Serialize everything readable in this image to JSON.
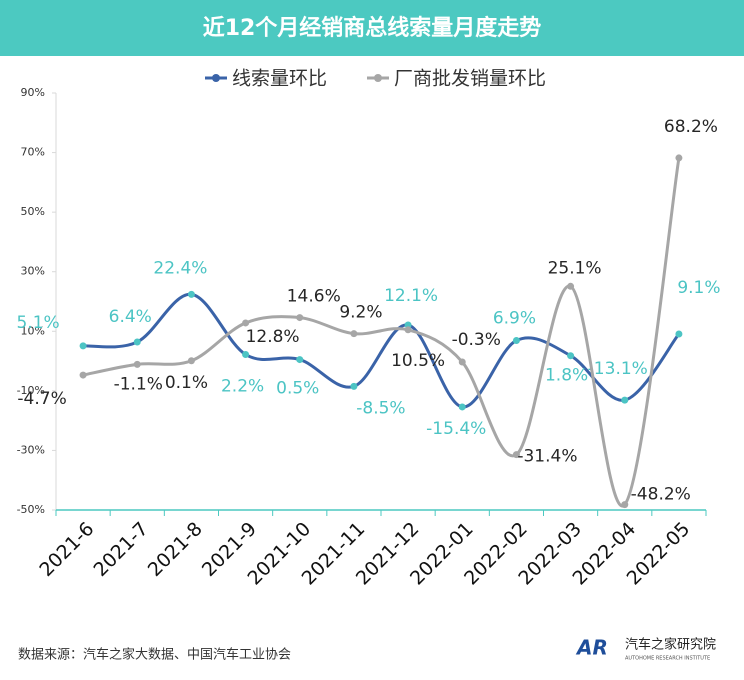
{
  "chart_data": {
    "type": "line",
    "title": "近12个月经销商总线索量月度走势",
    "categories": [
      "2021-6",
      "2021-7",
      "2021-8",
      "2021-9",
      "2021-10",
      "2021-11",
      "2021-12",
      "2022-01",
      "2022-02",
      "2022-03",
      "2022-04",
      "2022-05"
    ],
    "series": [
      {
        "name": "线索量环比",
        "color": "#3a63a8",
        "marker_color": "#4cc4c4",
        "label_color": "#4cc4c4",
        "values": [
          5.1,
          6.4,
          22.4,
          2.2,
          0.5,
          -8.5,
          12.1,
          -15.4,
          6.9,
          1.8,
          -13.1,
          9.1
        ],
        "value_labels": [
          "5.1%",
          "6.4%",
          "22.4%",
          "2.2%",
          "0.5%",
          "-8.5%",
          "12.1%",
          "-15.4%",
          "6.9%",
          "1.8%",
          "-13.1%",
          "9.1%"
        ]
      },
      {
        "name": "厂商批发销量环比",
        "color": "#a6a6a6",
        "marker_color": "#a6a6a6",
        "label_color": "#262626",
        "values": [
          -4.7,
          -1.1,
          0.1,
          12.8,
          14.6,
          9.2,
          10.5,
          -0.3,
          -31.4,
          25.1,
          -48.2,
          68.2
        ],
        "value_labels": [
          "-4.7%",
          "-1.1%",
          "0.1%",
          "12.8%",
          "14.6%",
          "9.2%",
          "10.5%",
          "-0.3%",
          "-31.4%",
          "25.1%",
          "-48.2%",
          "68.2%"
        ]
      }
    ],
    "ylim": [
      -50,
      90
    ],
    "yticks": [
      {
        "value": -50,
        "label": "-50%"
      },
      {
        "value": -30,
        "label": "-30%"
      },
      {
        "value": -10,
        "label": "-10%"
      },
      {
        "value": 10,
        "label": "10%"
      },
      {
        "value": 30,
        "label": "30%"
      },
      {
        "value": 50,
        "label": "50%"
      },
      {
        "value": 70,
        "label": "70%"
      },
      {
        "value": 90,
        "label": "90%"
      }
    ],
    "grid": false,
    "legend": "top",
    "smooth": true
  },
  "footer": {
    "source": "数据来源：汽车之家大数据、中国汽车工业协会",
    "logo_mark": "AR",
    "logo_name": "汽车之家研究院",
    "logo_sub": "AUTOHOME RESEARCH INSTITUTE"
  }
}
